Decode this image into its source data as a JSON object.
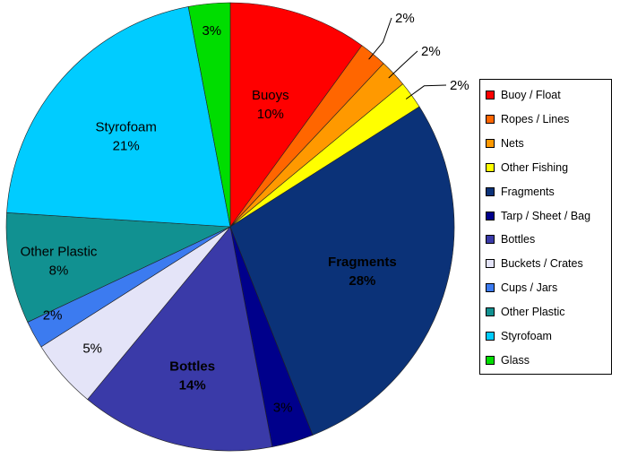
{
  "chart_data": {
    "type": "pie",
    "title": "",
    "start_angle_deg": 0,
    "direction": "clockwise",
    "slices": [
      {
        "name": "Buoy / Float",
        "value": 10,
        "label": "Buoys",
        "pct_label": "10%",
        "color": "#ff0000",
        "text_color": "#000000",
        "bold": false,
        "inside": true
      },
      {
        "name": "Ropes / Lines",
        "value": 2,
        "label": "",
        "pct_label": "2%",
        "color": "#ff6600",
        "text_color": "#000000",
        "bold": false,
        "inside": false
      },
      {
        "name": "Nets",
        "value": 2,
        "label": "",
        "pct_label": "2%",
        "color": "#ff9900",
        "text_color": "#000000",
        "bold": false,
        "inside": false
      },
      {
        "name": "Other Fishing",
        "value": 2,
        "label": "",
        "pct_label": "2%",
        "color": "#ffff00",
        "text_color": "#000000",
        "bold": false,
        "inside": false
      },
      {
        "name": "Fragments",
        "value": 28,
        "label": "Fragments",
        "pct_label": "28%",
        "color": "#0b3278",
        "text_color": "#000000",
        "bold": true,
        "inside": true
      },
      {
        "name": "Tarp / Sheet / Bag",
        "value": 3,
        "label": "",
        "pct_label": "3%",
        "color": "#00008b",
        "text_color": "#000000",
        "bold": false,
        "inside": true
      },
      {
        "name": "Bottles",
        "value": 14,
        "label": "Bottles",
        "pct_label": "14%",
        "color": "#3a3aa8",
        "text_color": "#000000",
        "bold": true,
        "inside": true
      },
      {
        "name": "Buckets / Crates",
        "value": 5,
        "label": "",
        "pct_label": "5%",
        "color": "#e4e4f8",
        "text_color": "#000000",
        "bold": false,
        "inside": true
      },
      {
        "name": "Cups / Jars",
        "value": 2,
        "label": "",
        "pct_label": "2%",
        "color": "#3c7bf0",
        "text_color": "#000000",
        "bold": false,
        "inside": true
      },
      {
        "name": "Other Plastic",
        "value": 8,
        "label": "Other Plastic",
        "pct_label": "8%",
        "color": "#119191",
        "text_color": "#000000",
        "bold": false,
        "inside": true
      },
      {
        "name": "Styrofoam",
        "value": 21,
        "label": "Styrofoam",
        "pct_label": "21%",
        "color": "#00ccff",
        "text_color": "#000000",
        "bold": false,
        "inside": true
      },
      {
        "name": "Glass",
        "value": 3,
        "label": "",
        "pct_label": "3%",
        "color": "#00dd00",
        "text_color": "#000000",
        "bold": false,
        "inside": true
      }
    ],
    "legend": {
      "placement": "right",
      "entries": [
        "Buoy / Float",
        "Ropes / Lines",
        "Nets",
        "Other Fishing",
        "Fragments",
        "Tarp / Sheet / Bag",
        "Bottles",
        "Buckets / Crates",
        "Cups / Jars",
        "Other Plastic",
        "Styrofoam",
        "Glass"
      ]
    }
  }
}
